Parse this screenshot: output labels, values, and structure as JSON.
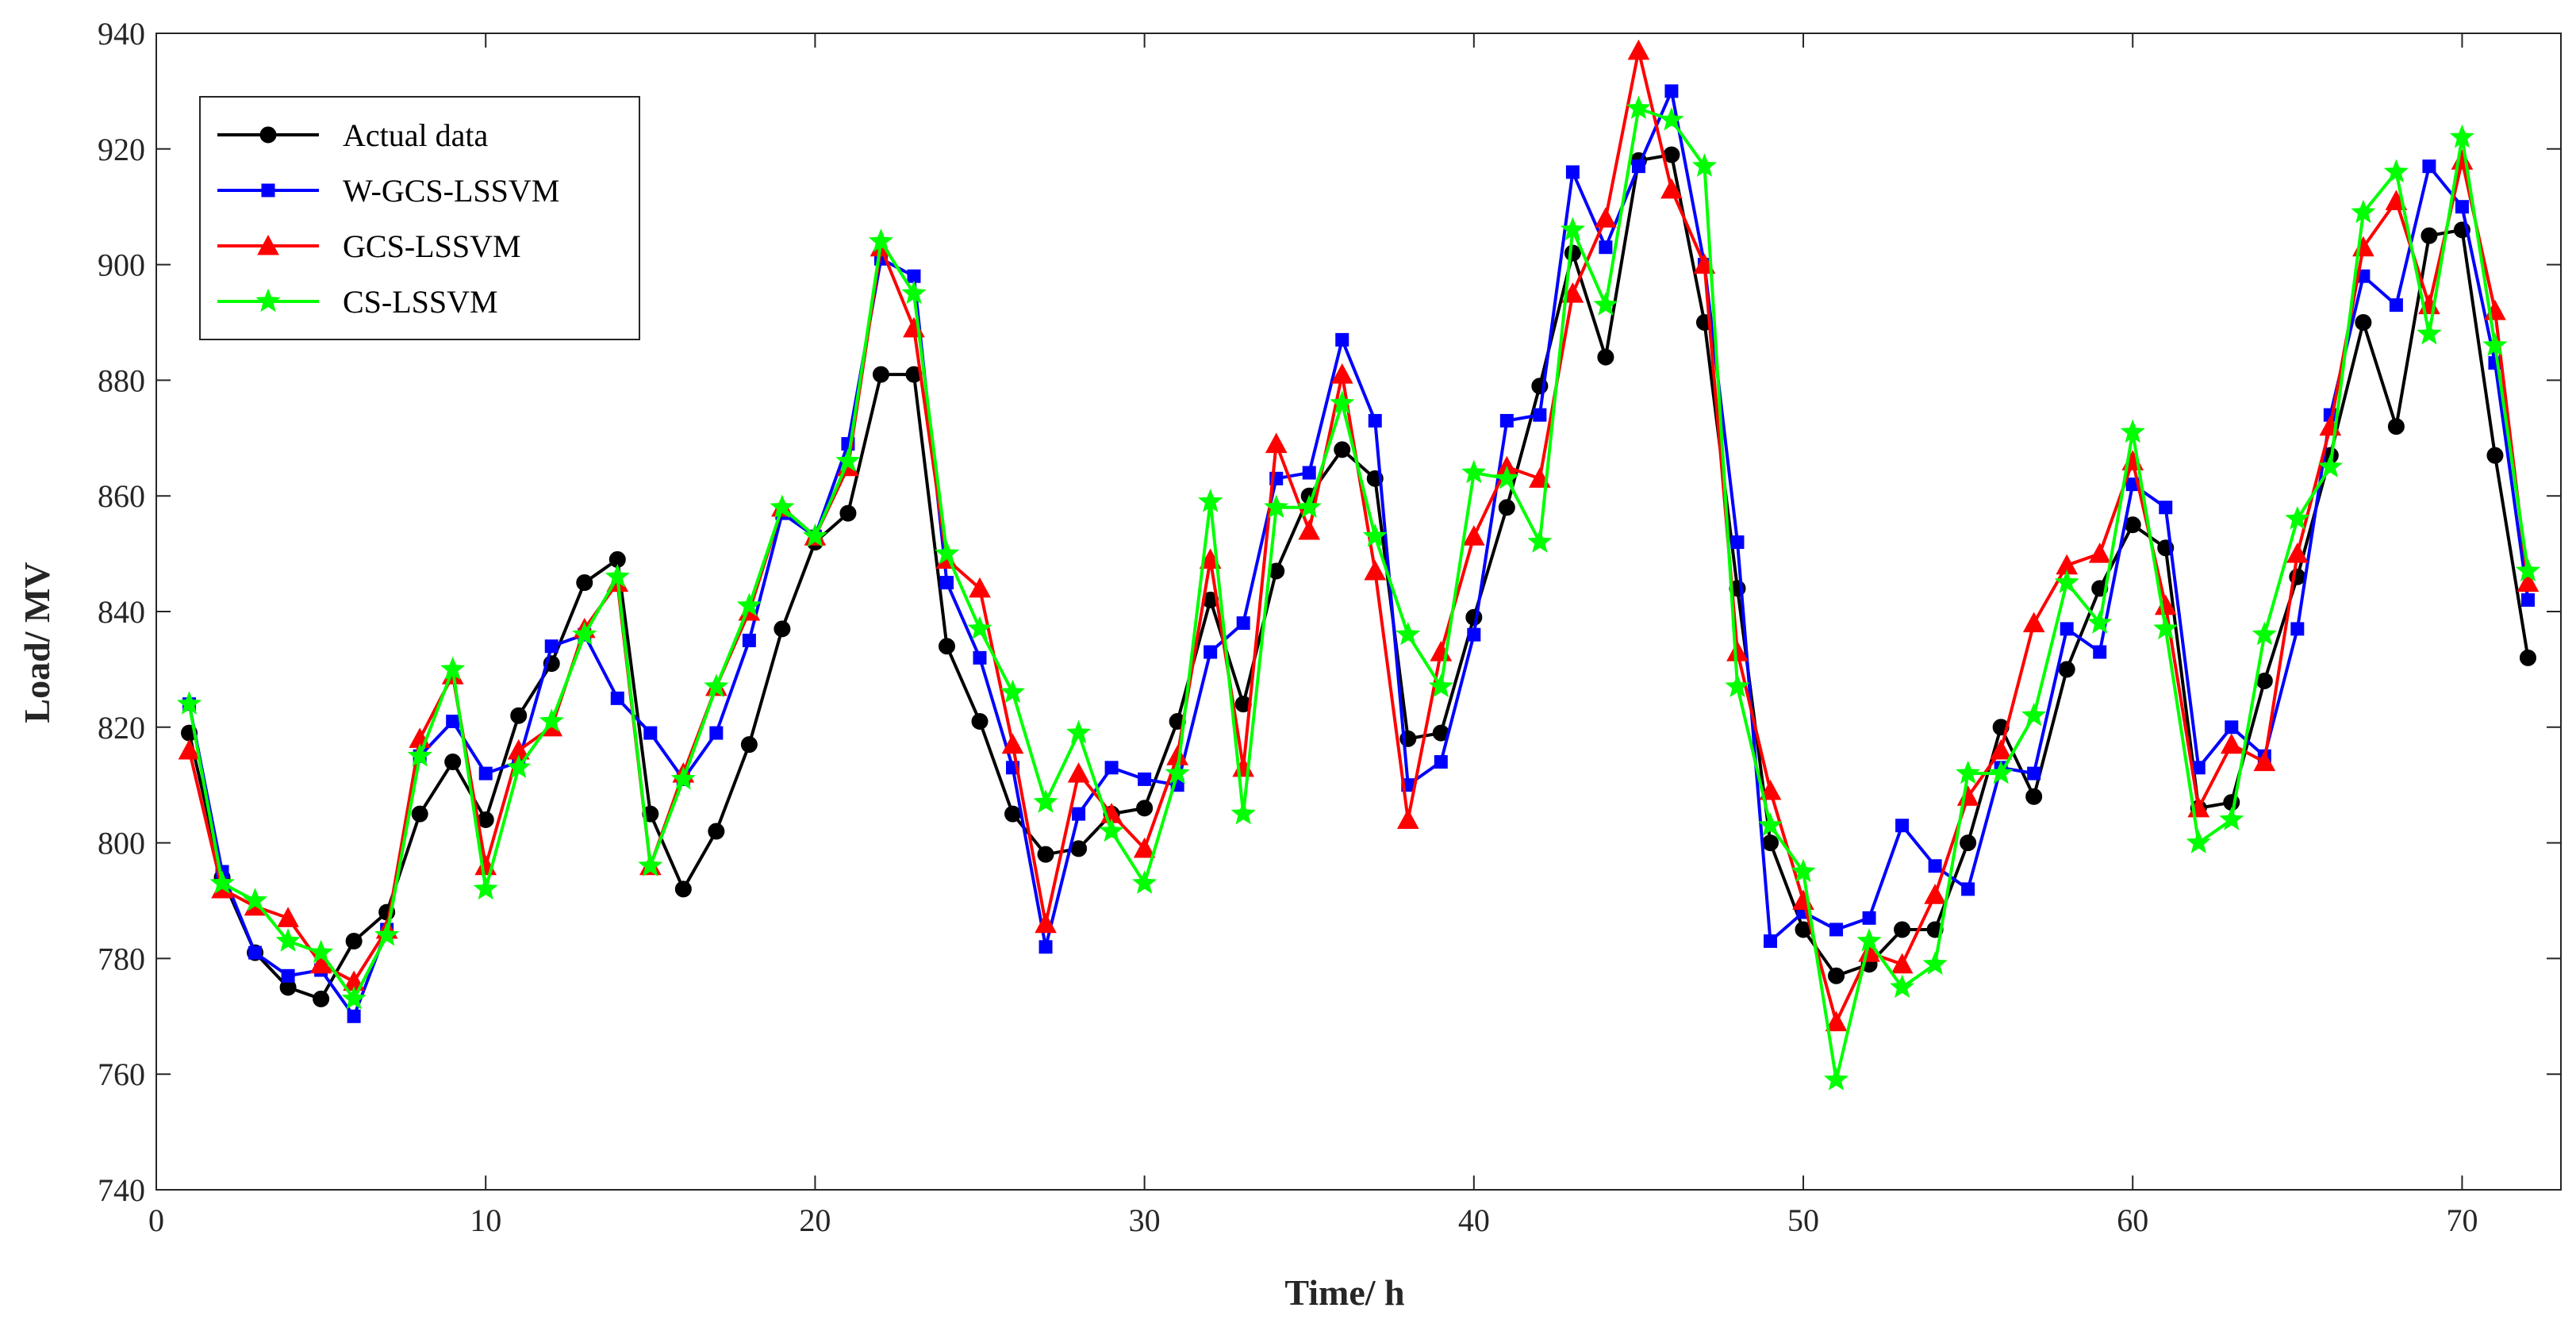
{
  "chart_data": {
    "type": "line",
    "title": "",
    "xlabel": "Time/ h",
    "ylabel": "Load/ MV",
    "xlim": [
      0,
      73
    ],
    "ylim": [
      740,
      940
    ],
    "xticks": [
      0,
      10,
      20,
      30,
      40,
      50,
      60,
      70
    ],
    "yticks": [
      740,
      760,
      780,
      800,
      820,
      840,
      860,
      880,
      900,
      920,
      940
    ],
    "grid": false,
    "legend_position": "top-left",
    "x": [
      1,
      2,
      3,
      4,
      5,
      6,
      7,
      8,
      9,
      10,
      11,
      12,
      13,
      14,
      15,
      16,
      17,
      18,
      19,
      20,
      21,
      22,
      23,
      24,
      25,
      26,
      27,
      28,
      29,
      30,
      31,
      32,
      33,
      34,
      35,
      36,
      37,
      38,
      39,
      40,
      41,
      42,
      43,
      44,
      45,
      46,
      47,
      48,
      49,
      50,
      51,
      52,
      53,
      54,
      55,
      56,
      57,
      58,
      59,
      60,
      61,
      62,
      63,
      64,
      65,
      66,
      67,
      68,
      69,
      70,
      71,
      72
    ],
    "series": [
      {
        "name": "Actual data",
        "color": "#000000",
        "marker": "circle",
        "values": [
          819,
          794,
          781,
          775,
          773,
          783,
          788,
          805,
          814,
          804,
          822,
          831,
          845,
          849,
          805,
          792,
          802,
          817,
          837,
          852,
          857,
          881,
          881,
          834,
          821,
          805,
          798,
          799,
          805,
          806,
          821,
          842,
          824,
          847,
          860,
          868,
          863,
          818,
          819,
          839,
          858,
          879,
          902,
          884,
          918,
          919,
          890,
          844,
          800,
          785,
          777,
          779,
          785,
          785,
          800,
          820,
          808,
          830,
          844,
          855,
          851,
          806,
          807,
          828,
          846,
          867,
          890,
          872,
          905,
          906,
          867,
          832
        ]
      },
      {
        "name": "W-GCS-LSSVM",
        "color": "#0000ff",
        "marker": "square",
        "values": [
          824,
          795,
          781,
          777,
          778,
          770,
          785,
          815,
          821,
          812,
          814,
          834,
          836,
          825,
          819,
          811,
          819,
          835,
          857,
          853,
          869,
          901,
          898,
          845,
          832,
          813,
          782,
          805,
          813,
          811,
          810,
          833,
          838,
          863,
          864,
          887,
          873,
          810,
          814,
          836,
          873,
          874,
          916,
          903,
          917,
          930,
          900,
          852,
          783,
          788,
          785,
          787,
          803,
          796,
          792,
          813,
          812,
          837,
          833,
          862,
          858,
          813,
          820,
          815,
          837,
          874,
          898,
          893,
          917,
          910,
          883,
          842
        ]
      },
      {
        "name": "GCS-LSSVM",
        "color": "#ff0000",
        "marker": "triangle",
        "values": [
          816,
          792,
          789,
          787,
          779,
          776,
          785,
          818,
          829,
          796,
          816,
          820,
          837,
          845,
          796,
          812,
          827,
          840,
          858,
          853,
          865,
          903,
          889,
          849,
          844,
          817,
          786,
          812,
          805,
          799,
          815,
          849,
          813,
          869,
          854,
          881,
          847,
          804,
          833,
          853,
          865,
          863,
          895,
          908,
          937,
          913,
          900,
          833,
          809,
          790,
          769,
          781,
          779,
          791,
          808,
          816,
          838,
          848,
          850,
          866,
          841,
          806,
          817,
          814,
          850,
          872,
          903,
          911,
          893,
          918,
          892,
          845
        ]
      },
      {
        "name": "CS-LSSVM",
        "color": "#00ff00",
        "marker": "star",
        "values": [
          824,
          793,
          790,
          783,
          781,
          773,
          784,
          815,
          830,
          792,
          813,
          821,
          836,
          846,
          796,
          811,
          827,
          841,
          858,
          853,
          866,
          904,
          895,
          850,
          837,
          826,
          807,
          819,
          802,
          793,
          812,
          859,
          805,
          858,
          858,
          876,
          853,
          836,
          827,
          864,
          863,
          852,
          906,
          893,
          927,
          925,
          917,
          827,
          803,
          795,
          759,
          783,
          775,
          779,
          812,
          812,
          822,
          845,
          838,
          871,
          837,
          800,
          804,
          836,
          856,
          865,
          909,
          916,
          888,
          922,
          886,
          847
        ]
      }
    ]
  }
}
